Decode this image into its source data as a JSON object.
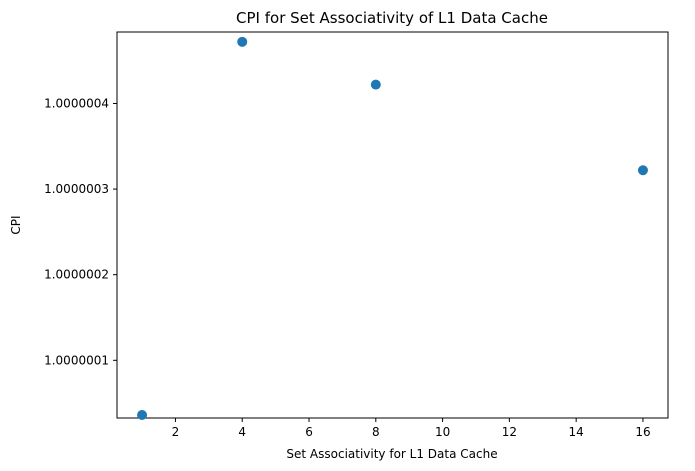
{
  "chart_data": {
    "type": "scatter",
    "title": "CPI for Set Associativity of L1 Data Cache",
    "xlabel": "Set Associativity for L1 Data Cache",
    "ylabel": "CPI",
    "xlim": [
      0.25,
      16.75
    ],
    "ylim": [
      1.0000000326,
      1.0000004835
    ],
    "xticks": [
      2,
      4,
      6,
      8,
      10,
      12,
      14,
      16
    ],
    "yticks": [
      1.0000001,
      1.0000002,
      1.0000003,
      1.0000004
    ],
    "ytick_labels": [
      "1.0000001",
      "1.0000002",
      "1.0000003",
      "1.0000004"
    ],
    "grid": false,
    "marker_color": "#1f77b4",
    "points": [
      {
        "x": 1,
        "y": 1.0000000361
      },
      {
        "x": 4,
        "y": 1.000000472
      },
      {
        "x": 8,
        "y": 1.000000422
      },
      {
        "x": 16,
        "y": 1.000000322
      }
    ]
  }
}
